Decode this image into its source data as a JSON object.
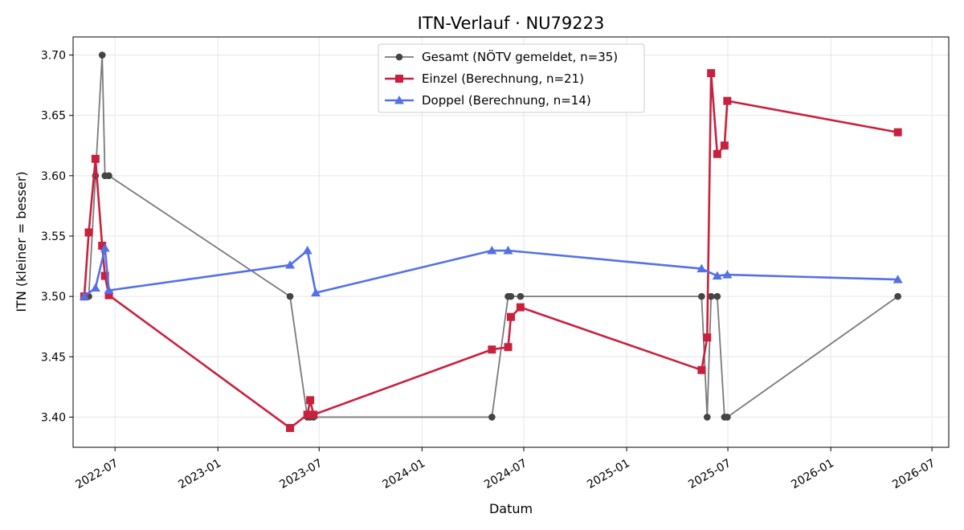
{
  "chart_data": {
    "type": "line",
    "title": "ITN-Verlauf · NU79223",
    "xlabel": "Datum",
    "ylabel": "ITN  (kleiner = besser)",
    "xlim": [
      "2022-04-17",
      "2026-07-31"
    ],
    "ylim": [
      3.375,
      3.715
    ],
    "x_ticks": [
      "2022-07",
      "2023-01",
      "2023-07",
      "2024-01",
      "2024-07",
      "2025-01",
      "2025-07",
      "2026-01",
      "2026-07"
    ],
    "y_ticks": [
      "3.40",
      "3.45",
      "3.50",
      "3.55",
      "3.60",
      "3.65",
      "3.70"
    ],
    "grid": true,
    "legend_position": "top-center",
    "series": [
      {
        "name": "Gesamt (NÖTV gemeldet, n=35)",
        "color": "#7a7a7a",
        "marker_color": "#444444",
        "marker": "circle",
        "points": [
          [
            "2022-05-07",
            3.5
          ],
          [
            "2022-05-15",
            3.5
          ],
          [
            "2022-05-27",
            3.6
          ],
          [
            "2022-06-08",
            3.7
          ],
          [
            "2022-06-13",
            3.6
          ],
          [
            "2022-06-20",
            3.6
          ],
          [
            "2023-05-10",
            3.5
          ],
          [
            "2023-06-10",
            3.4
          ],
          [
            "2023-06-15",
            3.4
          ],
          [
            "2023-06-21",
            3.4
          ],
          [
            "2024-05-05",
            3.4
          ],
          [
            "2024-06-03",
            3.5
          ],
          [
            "2024-06-08",
            3.5
          ],
          [
            "2024-06-25",
            3.5
          ],
          [
            "2025-05-15",
            3.5
          ],
          [
            "2025-05-25",
            3.4
          ],
          [
            "2025-06-01",
            3.5
          ],
          [
            "2025-06-12",
            3.5
          ],
          [
            "2025-06-25",
            3.4
          ],
          [
            "2025-06-30",
            3.4
          ],
          [
            "2026-05-01",
            3.5
          ]
        ]
      },
      {
        "name": "Einzel (Berechnung, n=21)",
        "color": "#c8213e",
        "marker": "square",
        "points": [
          [
            "2022-05-07",
            3.5
          ],
          [
            "2022-05-15",
            3.553
          ],
          [
            "2022-05-27",
            3.614
          ],
          [
            "2022-06-08",
            3.542
          ],
          [
            "2022-06-13",
            3.517
          ],
          [
            "2022-06-20",
            3.501
          ],
          [
            "2023-05-10",
            3.391
          ],
          [
            "2023-06-10",
            3.402
          ],
          [
            "2023-06-15",
            3.414
          ],
          [
            "2023-06-21",
            3.402
          ],
          [
            "2024-05-05",
            3.456
          ],
          [
            "2024-06-03",
            3.458
          ],
          [
            "2024-06-08",
            3.483
          ],
          [
            "2024-06-25",
            3.491
          ],
          [
            "2025-05-15",
            3.439
          ],
          [
            "2025-05-25",
            3.466
          ],
          [
            "2025-06-01",
            3.685
          ],
          [
            "2025-06-12",
            3.618
          ],
          [
            "2025-06-25",
            3.625
          ],
          [
            "2025-06-30",
            3.662
          ],
          [
            "2026-05-01",
            3.636
          ]
        ]
      },
      {
        "name": "Doppel (Berechnung, n=14)",
        "color": "#5470e6",
        "marker": "triangle",
        "points": [
          [
            "2022-05-07",
            3.5
          ],
          [
            "2022-05-27",
            3.507
          ],
          [
            "2022-06-13",
            3.54
          ],
          [
            "2022-06-20",
            3.505
          ],
          [
            "2023-05-10",
            3.526
          ],
          [
            "2023-06-10",
            3.538
          ],
          [
            "2023-06-25",
            3.503
          ],
          [
            "2024-05-05",
            3.538
          ],
          [
            "2024-06-03",
            3.538
          ],
          [
            "2025-05-15",
            3.523
          ],
          [
            "2025-06-12",
            3.517
          ],
          [
            "2025-06-30",
            3.518
          ],
          [
            "2026-05-01",
            3.514
          ]
        ]
      }
    ]
  }
}
